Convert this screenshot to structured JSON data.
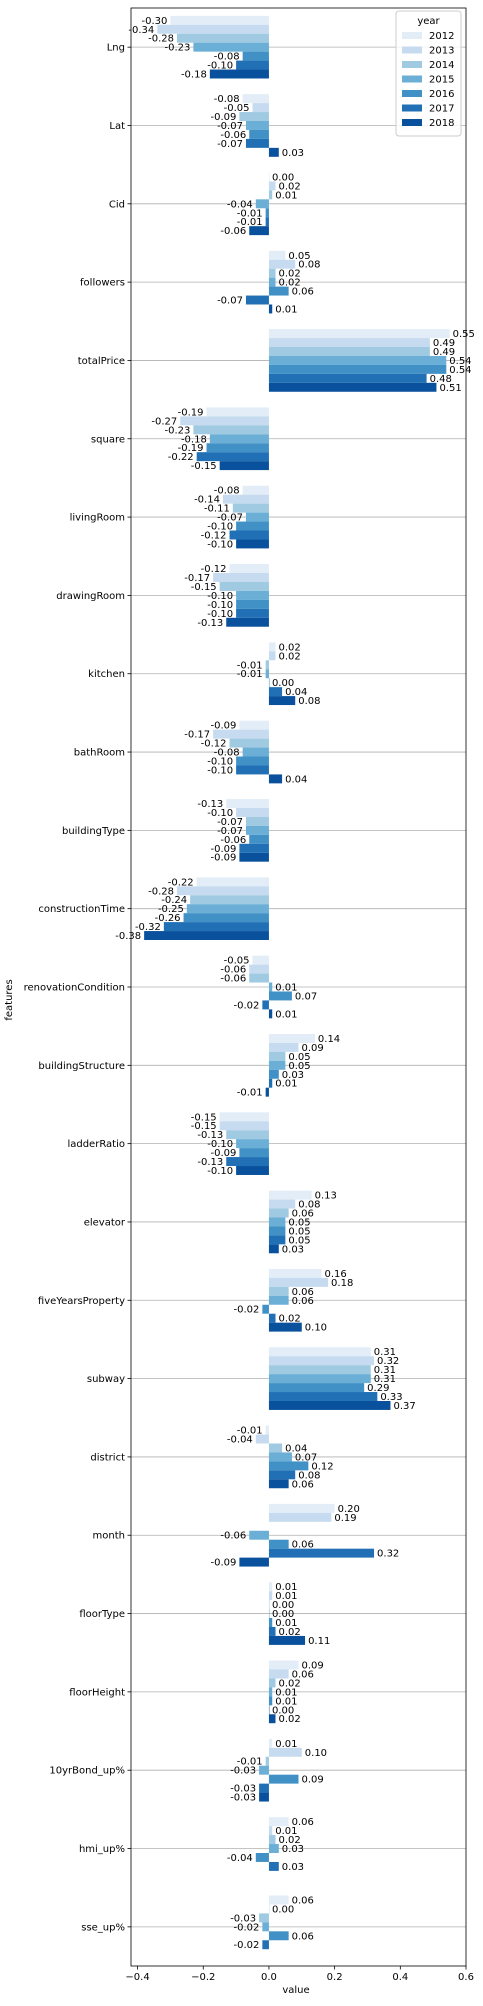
{
  "chart_data": {
    "type": "bar",
    "orientation": "horizontal",
    "title": "",
    "xlabel": "value",
    "ylabel": "features",
    "xlim": [
      -0.42,
      0.6
    ],
    "xticks": [
      -0.4,
      -0.2,
      0.0,
      0.2,
      0.4,
      0.6
    ],
    "xtick_labels": [
      "−0.4",
      "−0.2",
      "0.0",
      "0.2",
      "0.4",
      "0.6"
    ],
    "grid": "horizontal lines at each category",
    "legend": {
      "title": "year",
      "position": "top-right"
    },
    "categories": [
      "Lng",
      "Lat",
      "Cid",
      "followers",
      "totalPrice",
      "square",
      "livingRoom",
      "drawingRoom",
      "kitchen",
      "bathRoom",
      "buildingType",
      "constructionTime",
      "renovationCondition",
      "buildingStructure",
      "ladderRatio",
      "elevator",
      "fiveYearsProperty",
      "subway",
      "district",
      "month",
      "floorType",
      "floorHeight",
      "10yrBond_up%",
      "hmi_up%",
      "sse_up%"
    ],
    "series": [
      {
        "name": "2012",
        "color": "#e2edf8",
        "values": [
          -0.3,
          -0.08,
          -0.0,
          0.05,
          0.55,
          -0.19,
          -0.08,
          -0.12,
          0.02,
          -0.09,
          -0.13,
          -0.22,
          -0.05,
          0.14,
          -0.15,
          0.13,
          0.16,
          0.31,
          -0.01,
          0.2,
          0.01,
          0.09,
          0.01,
          0.06,
          0.06
        ]
      },
      {
        "name": "2013",
        "color": "#c6dbef",
        "values": [
          -0.34,
          -0.05,
          0.02,
          0.08,
          0.49,
          -0.27,
          -0.14,
          -0.17,
          0.02,
          -0.17,
          -0.1,
          -0.28,
          -0.06,
          0.09,
          -0.15,
          0.08,
          0.18,
          0.32,
          -0.04,
          0.19,
          0.01,
          0.06,
          0.1,
          0.01,
          0.0
        ]
      },
      {
        "name": "2014",
        "color": "#a0cae1",
        "values": [
          -0.28,
          -0.09,
          0.01,
          0.02,
          0.49,
          -0.23,
          -0.11,
          -0.15,
          -0.01,
          -0.12,
          -0.07,
          -0.24,
          -0.06,
          0.05,
          -0.13,
          0.06,
          0.06,
          0.31,
          0.04,
          null,
          -0.0,
          0.02,
          -0.01,
          0.02,
          -0.03
        ]
      },
      {
        "name": "2015",
        "color": "#6baed6",
        "values": [
          -0.23,
          -0.07,
          -0.04,
          0.02,
          0.54,
          -0.18,
          -0.07,
          -0.1,
          -0.01,
          -0.08,
          -0.07,
          -0.25,
          0.01,
          0.05,
          -0.1,
          0.05,
          0.06,
          0.31,
          0.07,
          -0.06,
          -0.0,
          0.01,
          -0.03,
          0.03,
          -0.02
        ]
      },
      {
        "name": "2016",
        "color": "#4191c6",
        "values": [
          -0.08,
          -0.06,
          -0.01,
          0.06,
          0.54,
          -0.19,
          -0.1,
          -0.1,
          -0.0,
          -0.1,
          -0.06,
          -0.26,
          0.07,
          0.03,
          -0.09,
          0.05,
          -0.02,
          0.29,
          0.12,
          0.06,
          0.01,
          0.01,
          0.09,
          -0.04,
          0.06
        ]
      },
      {
        "name": "2017",
        "color": "#2170b5",
        "values": [
          -0.1,
          -0.07,
          -0.01,
          -0.07,
          0.48,
          -0.22,
          -0.12,
          -0.1,
          0.04,
          -0.1,
          -0.09,
          -0.32,
          -0.02,
          0.01,
          -0.13,
          0.05,
          0.02,
          0.33,
          0.08,
          0.32,
          0.02,
          -0.0,
          -0.03,
          0.03,
          -0.02
        ]
      },
      {
        "name": "2018",
        "color": "#09519c",
        "values": [
          -0.18,
          0.03,
          -0.06,
          0.01,
          0.51,
          -0.15,
          -0.1,
          -0.13,
          0.08,
          0.04,
          -0.09,
          -0.38,
          0.01,
          -0.01,
          -0.1,
          0.03,
          0.1,
          0.37,
          0.06,
          -0.09,
          0.11,
          0.02,
          -0.03,
          null,
          null
        ]
      }
    ]
  }
}
